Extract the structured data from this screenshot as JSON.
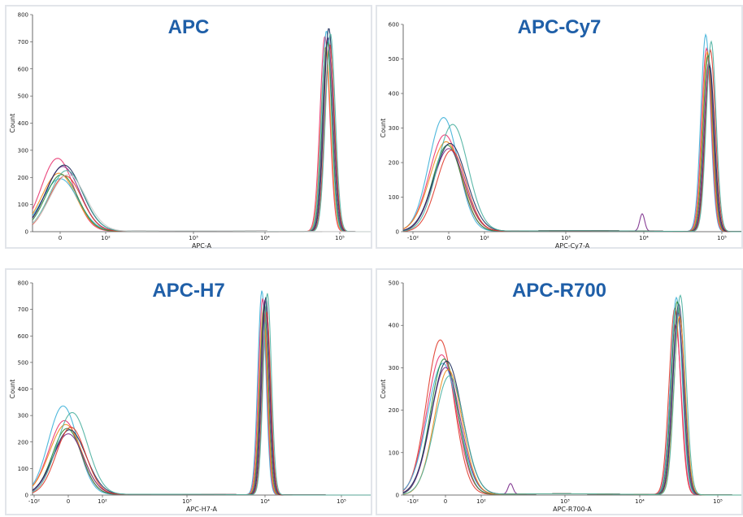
{
  "chart_data": [
    {
      "type": "line",
      "title": "APC",
      "xlabel": "APC-A",
      "ylabel": "Count",
      "xticks": [
        "0",
        "10²",
        "10³",
        "10⁴",
        "10⁵"
      ],
      "yticks": [
        "0",
        "100",
        "200",
        "300",
        "400",
        "500",
        "600",
        "700",
        "800"
      ],
      "ylim": [
        0,
        800
      ],
      "series": [
        {
          "color": "#e8336f",
          "neg_peak": 270,
          "pos_peak": 720
        },
        {
          "color": "#f08c1a",
          "neg_peak": 215,
          "pos_peak": 680
        },
        {
          "color": "#3cb0d8",
          "neg_peak": 195,
          "pos_peak": 740
        },
        {
          "color": "#2a8a3a",
          "neg_peak": 210,
          "pos_peak": 700
        },
        {
          "color": "#7a2a8a",
          "neg_peak": 240,
          "pos_peak": 715
        },
        {
          "color": "#1a2a5a",
          "neg_peak": 245,
          "pos_peak": 750
        },
        {
          "color": "#e03a2a",
          "neg_peak": 205,
          "pos_peak": 690
        },
        {
          "color": "#4ab0a0",
          "neg_peak": 225,
          "pos_peak": 730
        },
        {
          "color": "#cccccc",
          "neg_peak": 210,
          "pos_peak": 0
        }
      ]
    },
    {
      "type": "line",
      "title": "APC-Cy7",
      "xlabel": "APC-Cy7-A",
      "ylabel": "Count",
      "xticks": [
        "-10²",
        "0",
        "10²",
        "10³",
        "10⁴",
        "10⁵"
      ],
      "yticks": [
        "0",
        "100",
        "200",
        "300",
        "400",
        "500",
        "600"
      ],
      "ylim": [
        0,
        600
      ],
      "series": [
        {
          "color": "#3cb0d8",
          "neg_peak": 330,
          "pos_peak": 570
        },
        {
          "color": "#e8336f",
          "neg_peak": 280,
          "pos_peak": 530
        },
        {
          "color": "#f08c1a",
          "neg_peak": 260,
          "pos_peak": 520
        },
        {
          "color": "#2a8a3a",
          "neg_peak": 250,
          "pos_peak": 510
        },
        {
          "color": "#7a2a8a",
          "neg_peak": 240,
          "pos_peak": 490,
          "minor_peak": 50
        },
        {
          "color": "#1a2a5a",
          "neg_peak": 255,
          "pos_peak": 480
        },
        {
          "color": "#e03a2a",
          "neg_peak": 235,
          "pos_peak": 525
        },
        {
          "color": "#4ab0a0",
          "neg_peak": 310,
          "pos_peak": 550
        }
      ]
    },
    {
      "type": "line",
      "title": "APC-H7",
      "xlabel": "APC-H7-A",
      "ylabel": "Count",
      "xticks": [
        "-10²",
        "0",
        "10²",
        "10³",
        "10⁴",
        "10⁵"
      ],
      "yticks": [
        "0",
        "100",
        "200",
        "300",
        "400",
        "500",
        "600",
        "700",
        "800"
      ],
      "ylim": [
        0,
        800
      ],
      "series": [
        {
          "color": "#3cb0d8",
          "neg_peak": 335,
          "pos_peak": 770
        },
        {
          "color": "#e8336f",
          "neg_peak": 280,
          "pos_peak": 740
        },
        {
          "color": "#f08c1a",
          "neg_peak": 265,
          "pos_peak": 700
        },
        {
          "color": "#2a8a3a",
          "neg_peak": 250,
          "pos_peak": 720
        },
        {
          "color": "#7a2a8a",
          "neg_peak": 230,
          "pos_peak": 735
        },
        {
          "color": "#1a2a5a",
          "neg_peak": 245,
          "pos_peak": 745
        },
        {
          "color": "#e03a2a",
          "neg_peak": 255,
          "pos_peak": 690
        },
        {
          "color": "#4ab0a0",
          "neg_peak": 310,
          "pos_peak": 760
        }
      ]
    },
    {
      "type": "line",
      "title": "APC-R700",
      "xlabel": "APC-R700-A",
      "ylabel": "Count",
      "xticks": [
        "-10²",
        "0",
        "10²",
        "10³",
        "10⁴",
        "10⁵"
      ],
      "yticks": [
        "0",
        "100",
        "200",
        "300",
        "400",
        "500"
      ],
      "ylim": [
        0,
        500
      ],
      "series": [
        {
          "color": "#e03a2a",
          "neg_peak": 365,
          "pos_peak": 440
        },
        {
          "color": "#e8336f",
          "neg_peak": 330,
          "pos_peak": 400
        },
        {
          "color": "#3cb0d8",
          "neg_peak": 310,
          "pos_peak": 465
        },
        {
          "color": "#2a8a3a",
          "neg_peak": 320,
          "pos_peak": 455
        },
        {
          "color": "#7a2a8a",
          "neg_peak": 300,
          "pos_peak": 430,
          "minor_peak": 25
        },
        {
          "color": "#1a2a5a",
          "neg_peak": 315,
          "pos_peak": 450
        },
        {
          "color": "#f08c1a",
          "neg_peak": 295,
          "pos_peak": 420
        },
        {
          "color": "#4ab0a0",
          "neg_peak": 280,
          "pos_peak": 470
        }
      ]
    }
  ]
}
